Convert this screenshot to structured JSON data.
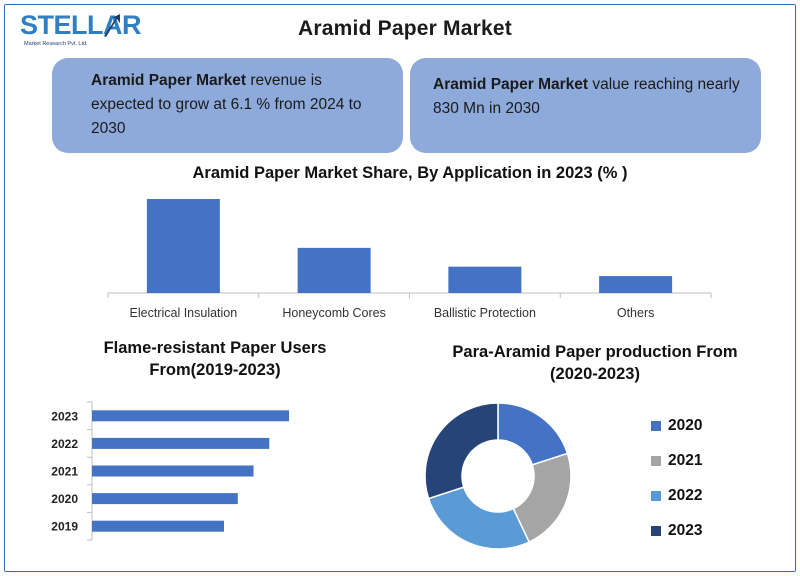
{
  "logo": {
    "word": "STELLAR",
    "sub": "Market Research Pvt. Ltd."
  },
  "title": "Aramid Paper Market",
  "info_left": {
    "bold": "Aramid Paper Market",
    "text": " revenue is expected to grow at 6.1 % from 2024 to 2030"
  },
  "info_right": {
    "bold": "Aramid Paper Market",
    "text": " value reaching nearly 830 Mn in 2030"
  },
  "chart_data": [
    {
      "type": "bar",
      "title": "Aramid Paper Market Share, By Application in 2023 (% )",
      "categories": [
        "Electrical Insulation",
        "Honeycomb Cores",
        "Ballistic Protection",
        "Others"
      ],
      "values": [
        50,
        24,
        14,
        9
      ],
      "ylim": [
        0,
        50
      ],
      "grid": false,
      "color": "#4472c4"
    },
    {
      "type": "bar",
      "orientation": "horizontal",
      "title": "Flame-resistant Paper Users From(2019-2023)",
      "categories": [
        "2023",
        "2022",
        "2021",
        "2020",
        "2019"
      ],
      "values": [
        100,
        90,
        82,
        74,
        67
      ],
      "xlim": [
        0,
        100
      ],
      "grid": false,
      "color": "#4472c4"
    },
    {
      "type": "pie",
      "donut": true,
      "title": "Para-Aramid Paper production From (2020-2023)",
      "categories": [
        "2020",
        "2021",
        "2022",
        "2023"
      ],
      "values": [
        20,
        23,
        27,
        30
      ],
      "colors": [
        "#4472c4",
        "#a5a5a5",
        "#5b9bd5",
        "#264478"
      ],
      "legend_position": "right"
    }
  ]
}
